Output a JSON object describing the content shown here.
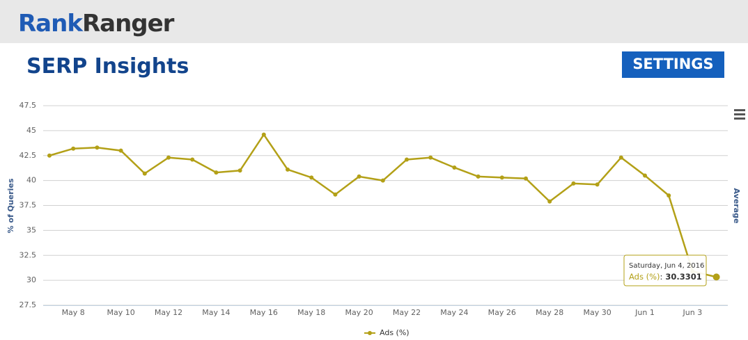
{
  "header": {
    "logo_first": "Rank",
    "logo_second": "Ranger"
  },
  "page_title": "SERP Insights",
  "settings_button": "SETTINGS",
  "chart_data": {
    "type": "line",
    "y_label": "% of Queries",
    "y2_label": "Average",
    "categories": [
      null,
      "May 8",
      null,
      "May 10",
      null,
      "May 12",
      null,
      "May 14",
      null,
      "May 16",
      null,
      "May 18",
      null,
      "May 20",
      null,
      "May 22",
      null,
      "May 24",
      null,
      "May 26",
      null,
      "May 28",
      null,
      "May 30",
      null,
      "Jun 1",
      null,
      "Jun 3",
      null
    ],
    "series": [
      {
        "name": "Ads (%)",
        "color": "#b3a017",
        "values": [
          42.5,
          43.2,
          43.3,
          43.0,
          40.7,
          42.3,
          42.1,
          40.8,
          41.0,
          44.6,
          41.1,
          40.3,
          38.6,
          40.4,
          40.0,
          42.1,
          42.3,
          41.3,
          40.4,
          40.3,
          40.2,
          37.9,
          39.7,
          39.6,
          42.3,
          40.5,
          38.5,
          30.9,
          30.3301
        ]
      }
    ],
    "ylim": [
      27.5,
      47.5
    ],
    "yticks": [
      27.5,
      30,
      32.5,
      35,
      37.5,
      40,
      42.5,
      45,
      47.5
    ],
    "grid": true,
    "legend": "bottom",
    "tooltip": {
      "date": "Saturday, Jun 4, 2016",
      "separator": ":"
    }
  }
}
